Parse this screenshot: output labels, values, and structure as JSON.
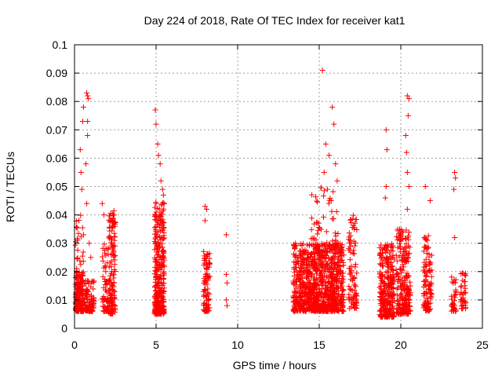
{
  "chart_data": {
    "type": "scatter",
    "title": "Day 224 of 2018, Rate Of TEC Index for receiver kat1",
    "xlabel": "GPS time / hours",
    "ylabel": "ROTI / TECUs",
    "xlim": [
      0,
      25
    ],
    "ylim": [
      0,
      0.1
    ],
    "x_ticks": [
      0,
      5,
      10,
      15,
      20,
      25
    ],
    "x_tick_labels": [
      "0",
      "5",
      "10",
      "15",
      "20",
      "25"
    ],
    "y_ticks": [
      0,
      0.01,
      0.02,
      0.03,
      0.04,
      0.05,
      0.06,
      0.07,
      0.08,
      0.09,
      0.1
    ],
    "y_tick_labels": [
      "0",
      "0.01",
      "0.02",
      "0.03",
      "0.04",
      "0.05",
      "0.06",
      "0.07",
      "0.08",
      "0.09",
      "0.1"
    ],
    "grid": true,
    "marker": "+",
    "color": "#ff0000",
    "clusters": [
      {
        "x": [
          0.05,
          0.55
        ],
        "y": [
          0.006,
          0.02
        ],
        "n": 180
      },
      {
        "x": [
          0.05,
          0.55
        ],
        "y": [
          0.02,
          0.04
        ],
        "n": 25
      },
      {
        "x": [
          0.6,
          1.2
        ],
        "y": [
          0.006,
          0.017
        ],
        "n": 90
      },
      {
        "x": [
          1.7,
          2.1
        ],
        "y": [
          0.006,
          0.03
        ],
        "n": 60
      },
      {
        "x": [
          2.1,
          2.5
        ],
        "y": [
          0.005,
          0.042
        ],
        "n": 140
      },
      {
        "x": [
          4.9,
          5.5
        ],
        "y": [
          0.005,
          0.045
        ],
        "n": 320
      },
      {
        "x": [
          7.9,
          8.3
        ],
        "y": [
          0.006,
          0.028
        ],
        "n": 90
      },
      {
        "x": [
          13.4,
          16.5
        ],
        "y": [
          0.006,
          0.03
        ],
        "n": 900
      },
      {
        "x": [
          14.5,
          16.2
        ],
        "y": [
          0.02,
          0.05
        ],
        "n": 90
      },
      {
        "x": [
          16.8,
          17.3
        ],
        "y": [
          0.007,
          0.04
        ],
        "n": 90
      },
      {
        "x": [
          18.7,
          19.6
        ],
        "y": [
          0.004,
          0.03
        ],
        "n": 280
      },
      {
        "x": [
          19.7,
          20.6
        ],
        "y": [
          0.005,
          0.035
        ],
        "n": 230
      },
      {
        "x": [
          21.4,
          21.9
        ],
        "y": [
          0.006,
          0.033
        ],
        "n": 110
      },
      {
        "x": [
          23.1,
          23.4
        ],
        "y": [
          0.006,
          0.02
        ],
        "n": 35
      },
      {
        "x": [
          23.6,
          24.0
        ],
        "y": [
          0.007,
          0.02
        ],
        "n": 40
      }
    ],
    "outliers": [
      [
        0.35,
        0.063
      ],
      [
        0.4,
        0.055
      ],
      [
        0.45,
        0.049
      ],
      [
        0.5,
        0.073
      ],
      [
        0.55,
        0.078
      ],
      [
        0.75,
        0.083
      ],
      [
        0.8,
        0.082
      ],
      [
        0.85,
        0.081
      ],
      [
        0.8,
        0.073
      ],
      [
        0.8,
        0.068
      ],
      [
        0.75,
        0.044
      ],
      [
        0.9,
        0.03
      ],
      [
        1.0,
        0.025
      ],
      [
        0.7,
        0.058
      ],
      [
        1.7,
        0.044
      ],
      [
        1.8,
        0.04
      ],
      [
        2.3,
        0.038
      ],
      [
        4.95,
        0.077
      ],
      [
        5.0,
        0.072
      ],
      [
        5.1,
        0.065
      ],
      [
        5.15,
        0.061
      ],
      [
        5.25,
        0.058
      ],
      [
        5.3,
        0.052
      ],
      [
        5.4,
        0.049
      ],
      [
        5.45,
        0.047
      ],
      [
        8.0,
        0.043
      ],
      [
        8.1,
        0.042
      ],
      [
        8.0,
        0.038
      ],
      [
        9.3,
        0.033
      ],
      [
        9.3,
        0.019
      ],
      [
        9.35,
        0.016
      ],
      [
        9.3,
        0.01
      ],
      [
        9.35,
        0.008
      ],
      [
        15.2,
        0.091
      ],
      [
        15.8,
        0.078
      ],
      [
        15.9,
        0.072
      ],
      [
        15.4,
        0.065
      ],
      [
        15.6,
        0.061
      ],
      [
        16.0,
        0.058
      ],
      [
        15.3,
        0.055
      ],
      [
        16.1,
        0.052
      ],
      [
        19.1,
        0.07
      ],
      [
        19.15,
        0.063
      ],
      [
        19.1,
        0.05
      ],
      [
        19.05,
        0.046
      ],
      [
        20.4,
        0.082
      ],
      [
        20.5,
        0.081
      ],
      [
        20.45,
        0.075
      ],
      [
        20.3,
        0.068
      ],
      [
        20.35,
        0.062
      ],
      [
        20.4,
        0.055
      ],
      [
        20.5,
        0.05
      ],
      [
        20.4,
        0.042
      ],
      [
        21.5,
        0.05
      ],
      [
        21.8,
        0.045
      ],
      [
        23.3,
        0.055
      ],
      [
        23.35,
        0.053
      ],
      [
        23.25,
        0.049
      ],
      [
        23.3,
        0.032
      ]
    ]
  }
}
